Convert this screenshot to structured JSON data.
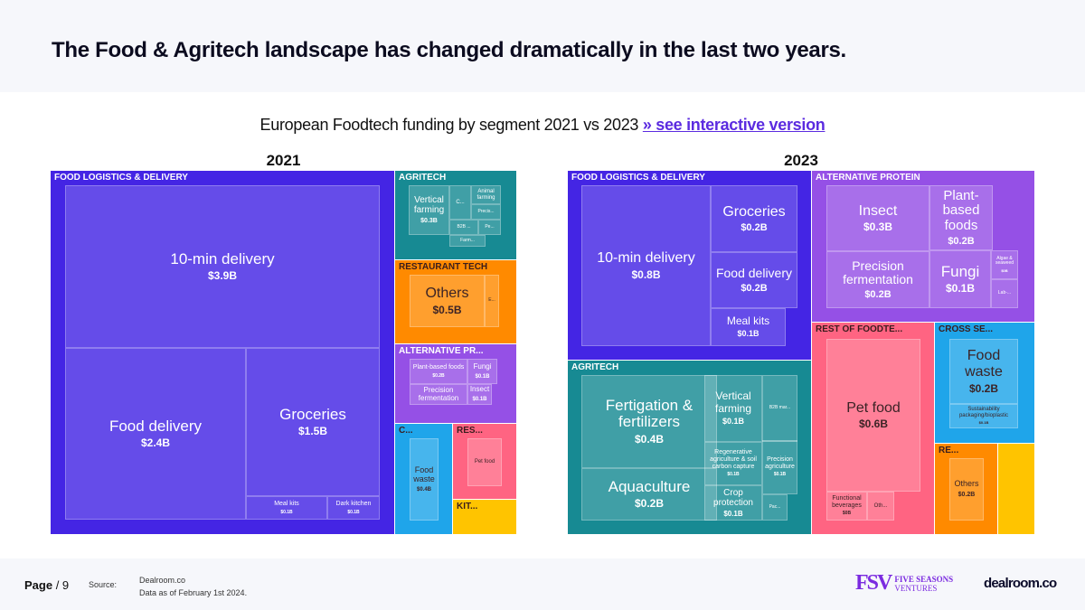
{
  "header": {
    "title": "The Food & Agritech landscape has changed dramatically in the last two years."
  },
  "subtitle": {
    "text": "European Foodtech funding by segment 2021 vs 2023 ",
    "link": "» see interactive version"
  },
  "footer": {
    "page_label": "Page",
    "page_number": "/ 9",
    "source_label": "Source:",
    "source_line1": "Dealroom.co",
    "source_line2": "Data as of February 1st 2024.",
    "fsv_logo": "FSV",
    "fsv_name": "FIVE SEASONS",
    "fsv_sub": "VENTURES",
    "dealroom_logo": "dealroom.co"
  },
  "colors": {
    "logistics": "#4425e4",
    "agritech": "#178a93",
    "restaurant": "#ff8a00",
    "altprotein": "#9550e6",
    "cross": "#1fa5ea",
    "rest": "#ff6482",
    "kitchen": "#ffc400",
    "link": "#5b2be0"
  },
  "chart_data": [
    {
      "type": "treemap",
      "title": "2021",
      "unit": "$B",
      "segments": [
        {
          "name": "FOOD LOGISTICS & DELIVERY",
          "color": "logistics",
          "children": [
            {
              "name": "10-min delivery",
              "value": 3.9,
              "label": "$3.9B"
            },
            {
              "name": "Food delivery",
              "value": 2.4,
              "label": "$2.4B"
            },
            {
              "name": "Groceries",
              "value": 1.5,
              "label": "$1.5B"
            },
            {
              "name": "Meal kits",
              "value": 0.1,
              "label": "$0.1B"
            },
            {
              "name": "Dark kitchen",
              "value": 0.1,
              "label": "$0.1B"
            }
          ]
        },
        {
          "name": "AGRITECH",
          "color": "agritech",
          "children": [
            {
              "name": "Vertical farming",
              "value": 0.3,
              "label": "$0.3B"
            },
            {
              "name": "C...",
              "value": 0.08
            },
            {
              "name": "Animal farming",
              "value": 0.05
            },
            {
              "name": "Precis...",
              "value": 0.05
            },
            {
              "name": "B2B ...",
              "value": 0.04
            },
            {
              "name": "Pe...",
              "value": 0.03
            },
            {
              "name": "Farm...",
              "value": 0.03
            }
          ]
        },
        {
          "name": "RESTAURANT TECH",
          "color": "restaurant",
          "dark": true,
          "children": [
            {
              "name": "Others",
              "value": 0.5,
              "label": "$0.5B"
            },
            {
              "name": "E...",
              "value": 0.04
            }
          ]
        },
        {
          "name": "ALTERNATIVE PR...",
          "color": "altprotein",
          "children": [
            {
              "name": "Plant-based foods",
              "value": 0.2,
              "label": "$0.2B"
            },
            {
              "name": "Fungi",
              "value": 0.1,
              "label": "$0.1B"
            },
            {
              "name": "Precision fermentation",
              "value": 0.1
            },
            {
              "name": "Insect",
              "value": 0.1,
              "label": "$0.1B"
            }
          ]
        },
        {
          "name": "C...",
          "color": "cross",
          "dark": true,
          "children": [
            {
              "name": "Food waste",
              "value": 0.4,
              "label": "$0.4B"
            }
          ]
        },
        {
          "name": "RES...",
          "color": "rest",
          "dark": true,
          "children": [
            {
              "name": "Pet food",
              "value": 0.05
            }
          ]
        },
        {
          "name": "KIT...",
          "color": "kitchen",
          "dark": true,
          "children": []
        }
      ]
    },
    {
      "type": "treemap",
      "title": "2023",
      "unit": "$B",
      "segments": [
        {
          "name": "FOOD LOGISTICS & DELIVERY",
          "color": "logistics",
          "children": [
            {
              "name": "10-min delivery",
              "value": 0.8,
              "label": "$0.8B"
            },
            {
              "name": "Groceries",
              "value": 0.2,
              "label": "$0.2B"
            },
            {
              "name": "Food delivery",
              "value": 0.2,
              "label": "$0.2B"
            },
            {
              "name": "Meal kits",
              "value": 0.1,
              "label": "$0.1B"
            }
          ]
        },
        {
          "name": "ALTERNATIVE PROTEIN",
          "color": "altprotein",
          "children": [
            {
              "name": "Insect",
              "value": 0.3,
              "label": "$0.3B"
            },
            {
              "name": "Plant-based foods",
              "value": 0.2,
              "label": "$0.2B"
            },
            {
              "name": "Precision fermentation",
              "value": 0.2,
              "label": "$0.2B"
            },
            {
              "name": "Fungi",
              "value": 0.1,
              "label": "$0.1B"
            },
            {
              "name": "Algae & seaweed",
              "value": 0.03,
              "label": "$0B"
            },
            {
              "name": "Lab-...",
              "value": 0.03
            }
          ]
        },
        {
          "name": "AGRITECH",
          "color": "agritech",
          "children": [
            {
              "name": "Fertigation & fertilizers",
              "value": 0.4,
              "label": "$0.4B"
            },
            {
              "name": "Aquaculture",
              "value": 0.2,
              "label": "$0.2B"
            },
            {
              "name": "Vertical farming",
              "value": 0.1,
              "label": "$0.1B"
            },
            {
              "name": "B2B mar...",
              "value": 0.06
            },
            {
              "name": "Regenerative agriculture & soil carbon capture",
              "value": 0.1,
              "label": "$0.1B"
            },
            {
              "name": "Precision agriculture",
              "value": 0.1,
              "label": "$0.1B"
            },
            {
              "name": "Crop protection",
              "value": 0.1,
              "label": "$0.1B"
            },
            {
              "name": "Pac...",
              "value": 0.02
            }
          ]
        },
        {
          "name": "REST OF FOODTE...",
          "color": "rest",
          "dark": true,
          "children": [
            {
              "name": "Pet food",
              "value": 0.6,
              "label": "$0.6B"
            },
            {
              "name": "Functional beverages",
              "value": 0.03,
              "label": "$0B"
            },
            {
              "name": "Oth...",
              "value": 0.02
            }
          ]
        },
        {
          "name": "CROSS SE...",
          "color": "cross",
          "dark": true,
          "children": [
            {
              "name": "Food waste",
              "value": 0.2,
              "label": "$0.2B"
            },
            {
              "name": "Sustainability packaging/bioplastic",
              "value": 0.1,
              "label": "$0.1B"
            }
          ]
        },
        {
          "name": "RE...",
          "color": "restaurant",
          "dark": true,
          "children": [
            {
              "name": "Others",
              "value": 0.2,
              "label": "$0.2B"
            }
          ]
        },
        {
          "name": "",
          "color": "kitchen",
          "children": []
        }
      ]
    }
  ]
}
